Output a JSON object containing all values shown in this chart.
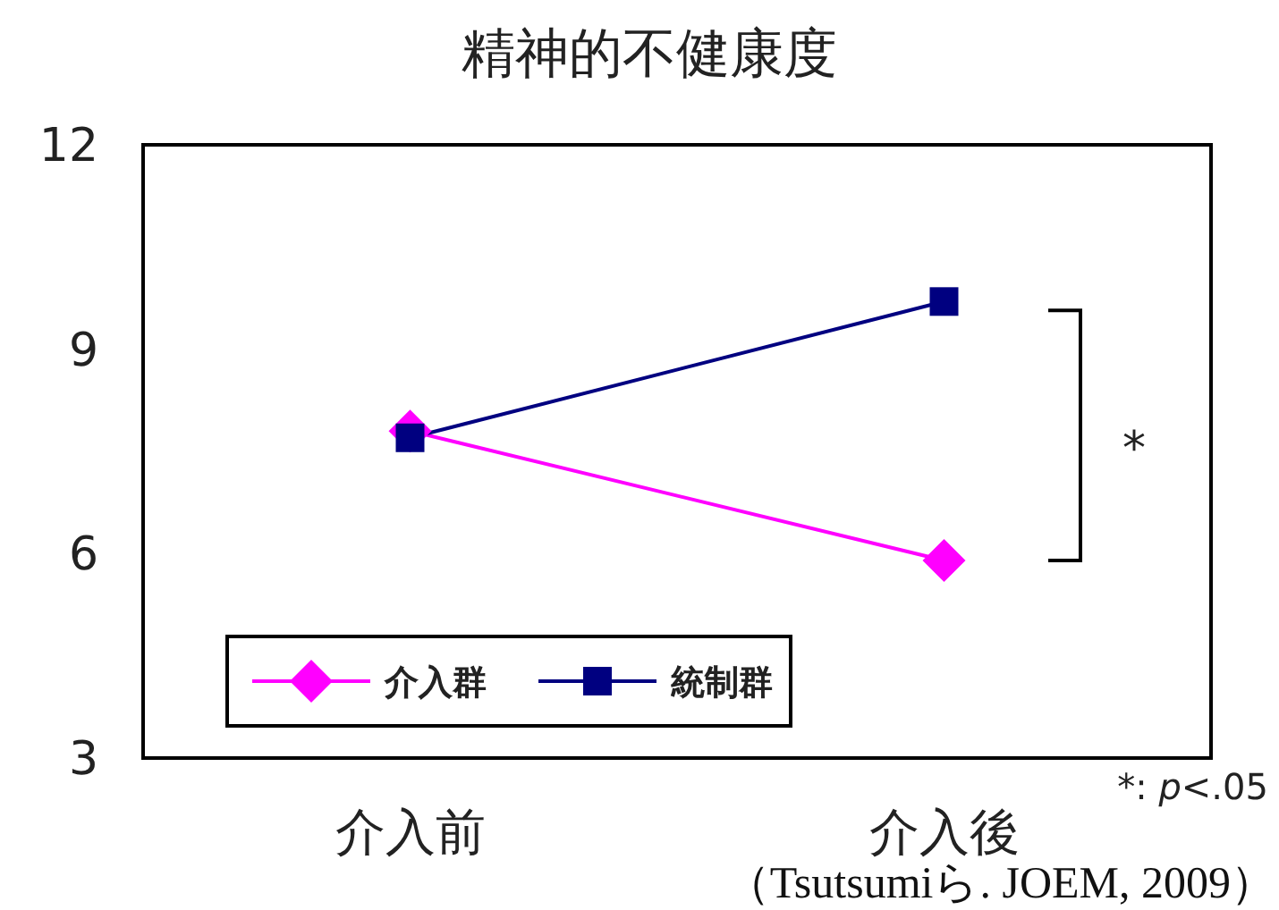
{
  "chart_data": {
    "type": "line",
    "title": "精神的不健康度",
    "categories": [
      "介入前",
      "介入後"
    ],
    "series": [
      {
        "name": "介入群",
        "color": "#ff00ff",
        "marker": "diamond",
        "values": [
          7.8,
          5.9
        ]
      },
      {
        "name": "統制群",
        "color": "#000080",
        "marker": "square",
        "values": [
          7.7,
          9.7
        ]
      }
    ],
    "ylim": [
      3,
      12
    ],
    "yticks": [
      3,
      6,
      9,
      12
    ],
    "legend": "bottom left",
    "grid": false,
    "annotations": [
      "*",
      "*: *p*<.05",
      "（Tsutsumiら. JOEM, 2009）"
    ]
  }
}
